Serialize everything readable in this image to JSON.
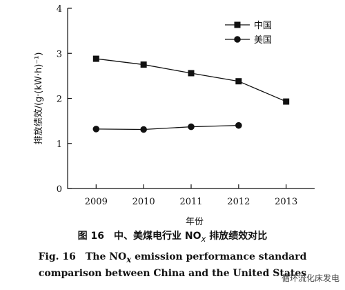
{
  "chart_data": {
    "type": "line",
    "xlabel": "年份",
    "ylabel": "排放绩效/(g·(kW·h)⁻¹)",
    "categories": [
      "2009",
      "2010",
      "2011",
      "2012",
      "2013"
    ],
    "ylim": [
      0,
      4
    ],
    "yticks": [
      "0",
      "1",
      "2",
      "3",
      "4"
    ],
    "grid": false,
    "legend_position": "top-right",
    "series": [
      {
        "name": "中国",
        "marker": "square",
        "values": [
          2.88,
          2.75,
          2.56,
          2.38,
          1.93
        ]
      },
      {
        "name": "美国",
        "marker": "circle",
        "values": [
          1.32,
          1.31,
          1.37,
          1.4,
          null
        ]
      }
    ]
  },
  "caption": {
    "cn_prefix": "图 16　中、美煤电行业 NO",
    "cn_sub": "x",
    "cn_suffix": " 排放绩效对比",
    "en_line1_prefix": "Fig. 16　The NO",
    "en_line1_sub": "x",
    "en_line1_suffix": " emission performance standard",
    "en_line2": "comparison between China and the United States"
  },
  "watermark": "循环流化床发电"
}
